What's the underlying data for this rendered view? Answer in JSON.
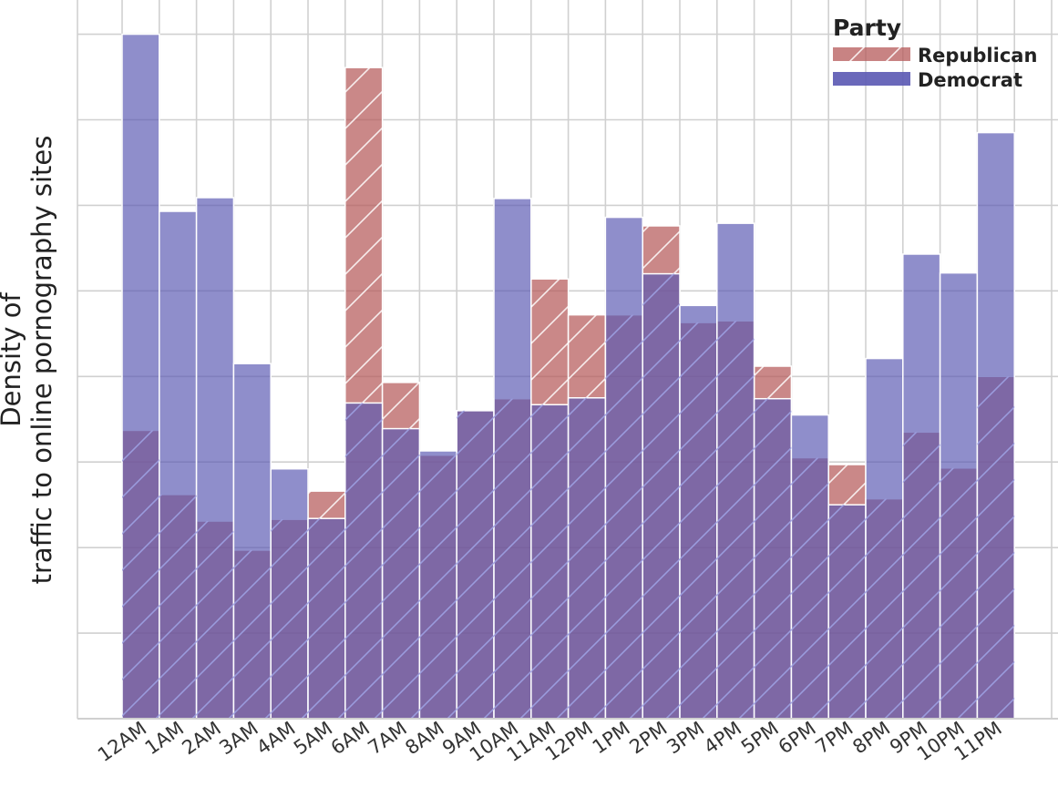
{
  "chart_data": {
    "type": "bar",
    "title": "",
    "xlabel": "",
    "ylabel_line1": "Density of",
    "ylabel_line2": "traffic to online pornography sites",
    "categories": [
      "12AM",
      "1AM",
      "2AM",
      "3AM",
      "4AM",
      "5AM",
      "6AM",
      "7AM",
      "8AM",
      "9AM",
      "10AM",
      "11AM",
      "12PM",
      "1PM",
      "2PM",
      "3PM",
      "4PM",
      "5PM",
      "6PM",
      "7PM",
      "8PM",
      "9PM",
      "10PM",
      "11PM"
    ],
    "series": [
      {
        "name": "Republican",
        "color": "#b55a5a",
        "hatch": true,
        "values": [
          3.37,
          2.62,
          2.31,
          1.97,
          2.33,
          2.66,
          7.61,
          3.93,
          3.08,
          3.6,
          3.74,
          5.14,
          4.72,
          4.72,
          5.76,
          4.63,
          4.65,
          4.12,
          3.05,
          2.97,
          2.57,
          3.35,
          2.93,
          4.0
        ]
      },
      {
        "name": "Democrat",
        "color": "#5a58b2",
        "hatch": false,
        "values": [
          8.0,
          5.93,
          6.09,
          4.15,
          2.92,
          2.34,
          3.69,
          3.39,
          3.13,
          3.6,
          6.08,
          3.67,
          3.75,
          5.86,
          5.2,
          4.83,
          5.79,
          3.74,
          3.55,
          2.5,
          4.21,
          5.43,
          5.21,
          6.85
        ]
      }
    ],
    "ylim": [
      0,
      8.4
    ],
    "grid": true,
    "legend": {
      "title": "Party",
      "placement": "top-right"
    }
  }
}
